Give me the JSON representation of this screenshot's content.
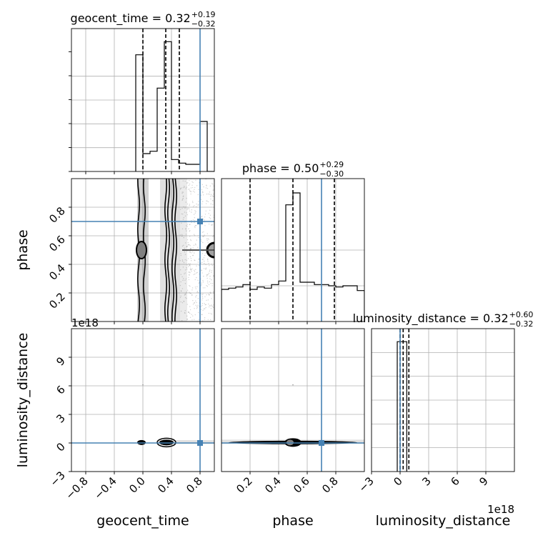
{
  "chart_data": {
    "type": "corner",
    "parameters": [
      "geocent_time",
      "phase",
      "luminosity_distance"
    ],
    "axis_labels": {
      "geocent_time": "geocent_time",
      "phase": "phase",
      "luminosity_distance": "luminosity_distance"
    },
    "ranges": {
      "geocent_time": [
        -1.0,
        1.0
      ],
      "phase": [
        0.0,
        1.0
      ],
      "luminosity_distance": [
        -3.0,
        12.0
      ]
    },
    "ticks": {
      "geocent_time": {
        "values": [
          -0.8,
          -0.4,
          0.0,
          0.4,
          0.8
        ],
        "labels": [
          "−0.8",
          "−0.4",
          "0.0",
          "0.4",
          "0.8"
        ]
      },
      "phase_x": {
        "values": [
          0.2,
          0.4,
          0.6,
          0.8
        ],
        "labels": [
          "0.2",
          "0.4",
          "0.6",
          "0.8"
        ]
      },
      "phase_y": {
        "values": [
          0.2,
          0.4,
          0.6,
          0.8
        ],
        "labels": [
          "0.2",
          "0.4",
          "0.6",
          "0.8"
        ]
      },
      "luminosity_distance": {
        "values": [
          -3,
          0,
          3,
          6,
          9
        ],
        "labels": [
          "−3",
          "0",
          "3",
          "6",
          "9"
        ]
      }
    },
    "luminosity_distance_y_tick_labels": [
      "−3",
      "0",
      "3",
      "6",
      "9"
    ],
    "offset_text": "1e18",
    "titles": [
      {
        "param": "geocent_time",
        "text": "geocent_time = 0.32",
        "sup": "+0.19",
        "sub": "−0.32"
      },
      {
        "param": "phase",
        "text": "phase = 0.50",
        "sup": "+0.29",
        "sub": "−0.30"
      },
      {
        "param": "luminosity_distance",
        "text": "luminosity_distance = 0.32",
        "sup": "+0.60",
        "sub": "−0.32"
      }
    ],
    "quantiles": {
      "geocent_time": [
        0.0,
        0.32,
        0.51
      ],
      "phase": [
        0.2,
        0.5,
        0.79
      ],
      "luminosity_distance": [
        0.0,
        0.32,
        0.92
      ]
    },
    "truths": {
      "geocent_time": 0.8,
      "phase": 0.7,
      "luminosity_distance": 0.0
    },
    "truth_color": "#4682b4",
    "histograms": {
      "geocent_time": {
        "edges": [
          -0.1,
          0.0,
          0.1,
          0.2,
          0.3,
          0.4,
          0.5,
          0.6,
          0.7,
          0.8,
          0.9,
          1.0
        ],
        "counts": [
          0.98,
          0.15,
          0.17,
          0.7,
          1.09,
          0.1,
          0.07,
          0.06,
          0.06,
          0.42,
          0.0
        ]
      },
      "phase": {
        "edges": [
          0.0,
          0.05,
          0.1,
          0.15,
          0.2,
          0.25,
          0.3,
          0.35,
          0.4,
          0.45,
          0.5,
          0.55,
          0.6,
          0.65,
          0.7,
          0.75,
          0.8,
          0.85,
          0.9,
          0.95,
          1.0
        ],
        "counts": [
          0.27,
          0.28,
          0.29,
          0.31,
          0.27,
          0.29,
          0.28,
          0.31,
          0.34,
          0.98,
          1.08,
          0.33,
          0.33,
          0.31,
          0.31,
          0.3,
          0.29,
          0.3,
          0.3,
          0.26
        ]
      },
      "luminosity_distance": {
        "edges": [
          -0.3,
          0.7
        ],
        "counts": [
          1.0
        ]
      }
    },
    "grid": true,
    "sample_color": "#808080"
  }
}
